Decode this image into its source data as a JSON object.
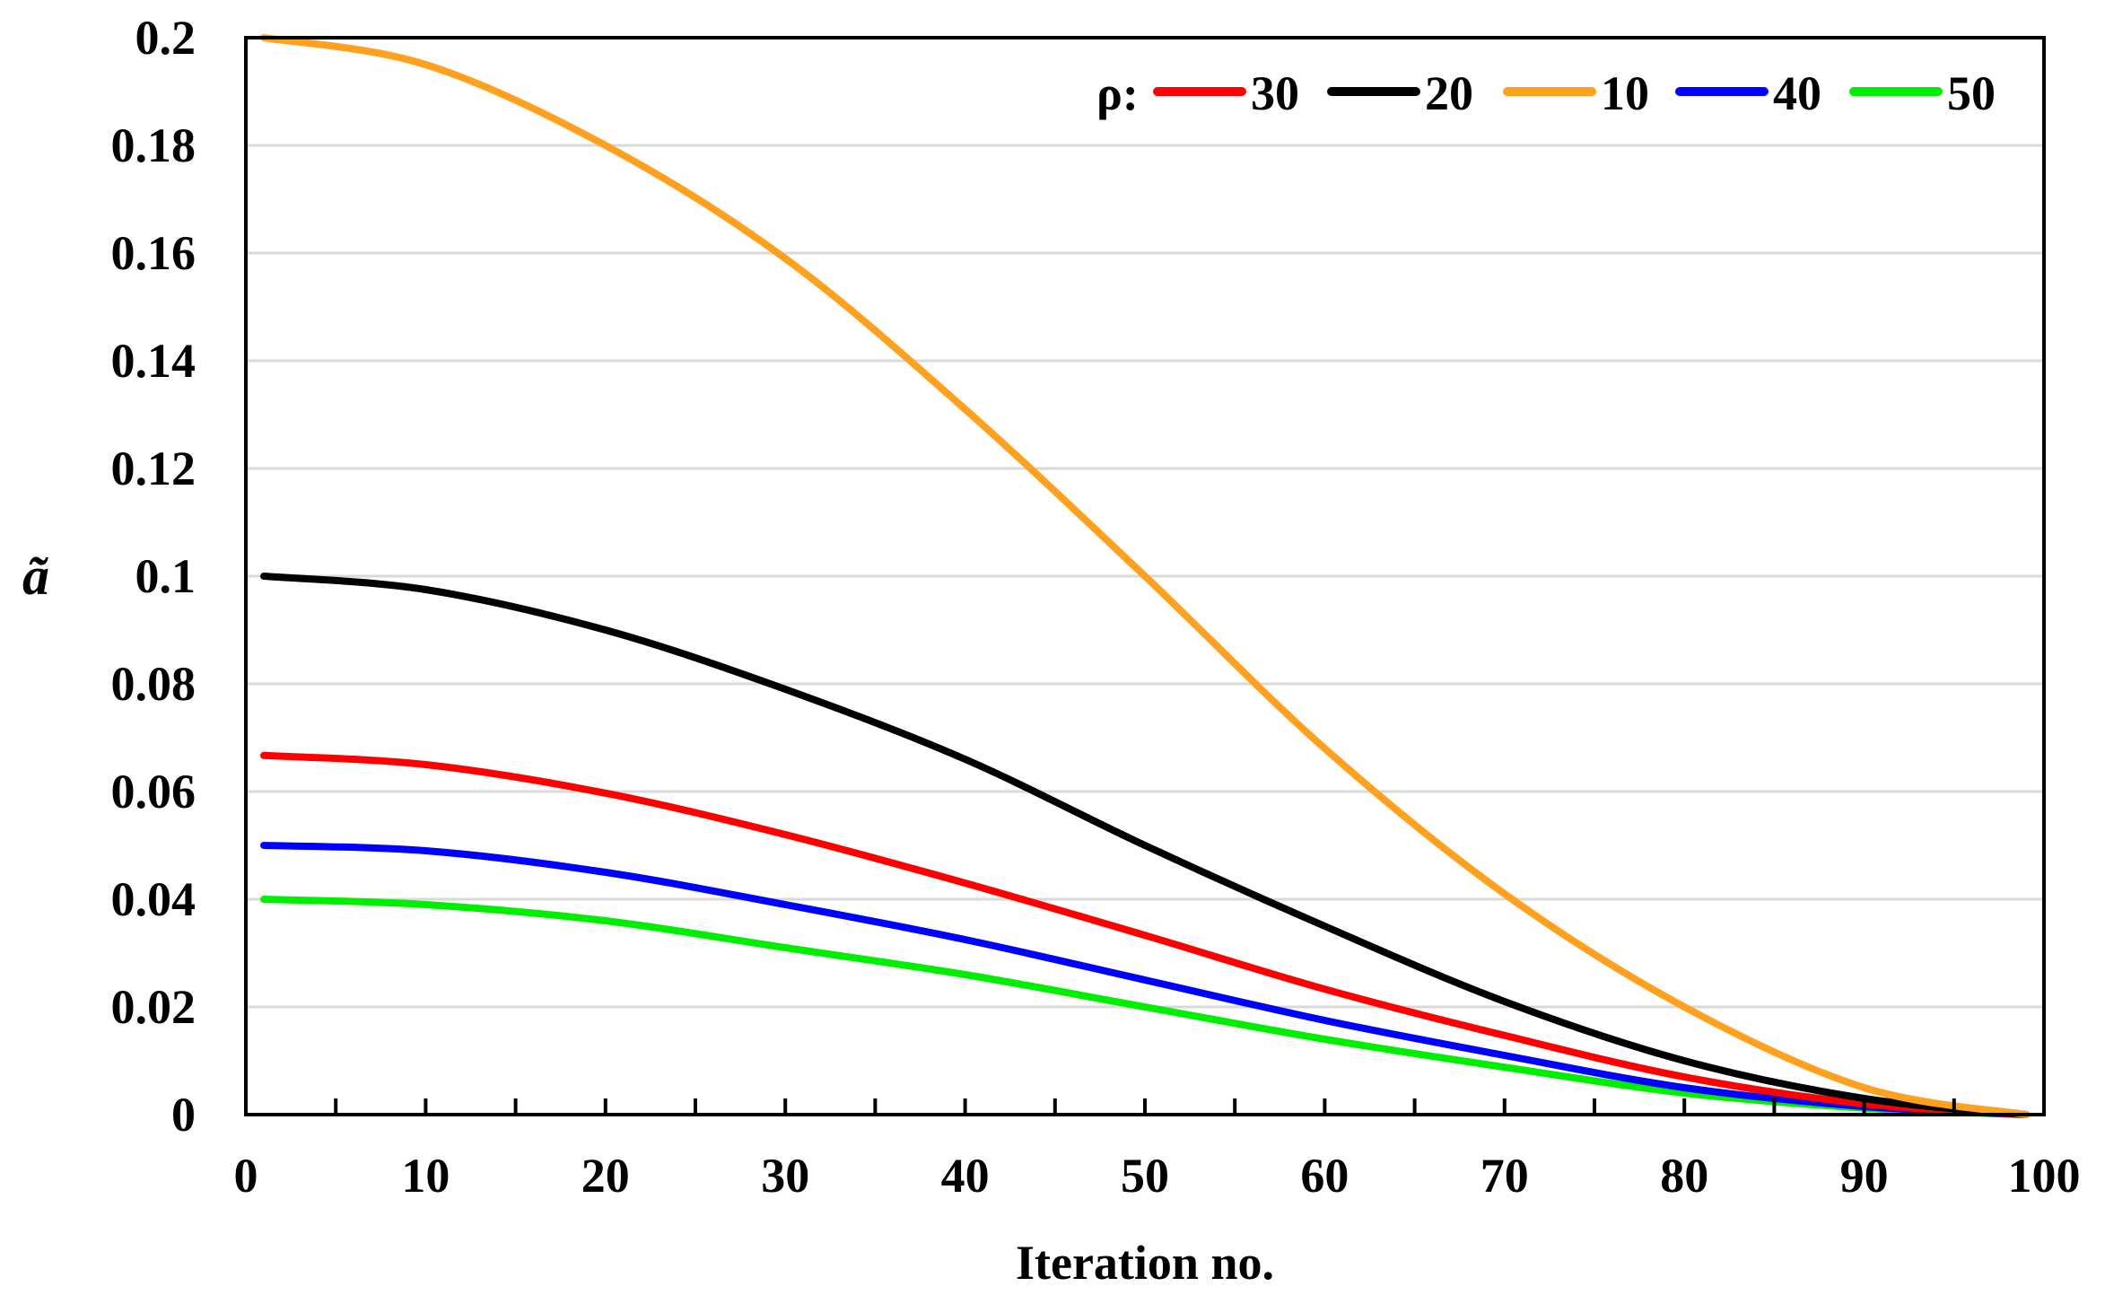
{
  "chart_data": {
    "type": "line",
    "title": "",
    "xlabel": "Iteration no.",
    "ylabel": "ã",
    "xlim": [
      0,
      100
    ],
    "ylim": [
      0,
      0.2
    ],
    "xticks": [
      0,
      10,
      20,
      30,
      40,
      50,
      60,
      70,
      80,
      90,
      100
    ],
    "yticks": [
      0,
      0.02,
      0.04,
      0.06,
      0.08,
      0.1,
      0.12,
      0.14,
      0.16,
      0.18,
      0.2
    ],
    "grid": "horizontal",
    "legend": {
      "title": "ρ:",
      "position": "top-right"
    },
    "x": [
      1,
      10,
      20,
      30,
      40,
      50,
      60,
      70,
      80,
      90,
      99
    ],
    "series": [
      {
        "name": "30",
        "color": "#ff0000",
        "values": [
          0.0667,
          0.065,
          0.0597,
          0.052,
          0.043,
          0.0333,
          0.0233,
          0.0147,
          0.007,
          0.002,
          0.0
        ]
      },
      {
        "name": "20",
        "color": "#000000",
        "values": [
          0.1,
          0.0975,
          0.09,
          0.079,
          0.066,
          0.05,
          0.035,
          0.021,
          0.01,
          0.003,
          0.0
        ]
      },
      {
        "name": "10",
        "color": "#ffa01e",
        "values": [
          0.2,
          0.195,
          0.18,
          0.159,
          0.131,
          0.1,
          0.068,
          0.041,
          0.02,
          0.005,
          0.0
        ]
      },
      {
        "name": "40",
        "color": "#0000ff",
        "values": [
          0.05,
          0.049,
          0.045,
          0.039,
          0.0325,
          0.025,
          0.0175,
          0.011,
          0.005,
          0.0015,
          0.0
        ]
      },
      {
        "name": "50",
        "color": "#00ee00",
        "values": [
          0.04,
          0.039,
          0.036,
          0.031,
          0.026,
          0.02,
          0.014,
          0.0088,
          0.004,
          0.0012,
          0.0
        ]
      }
    ]
  }
}
